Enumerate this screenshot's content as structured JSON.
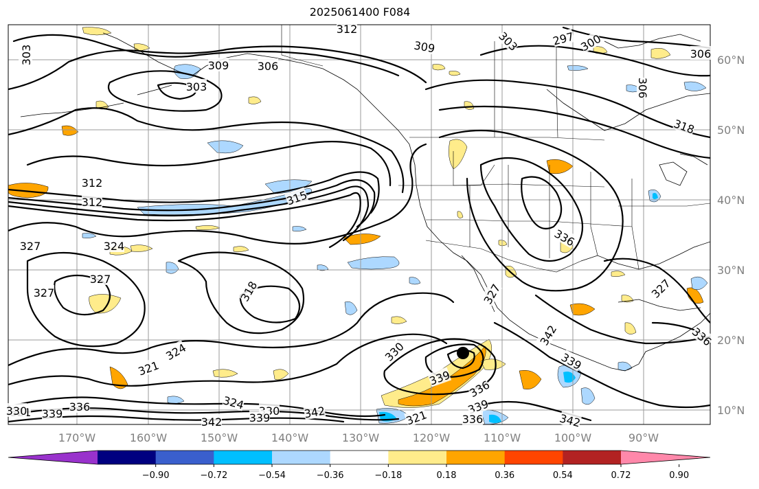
{
  "title": "2025061400 F084",
  "lon_labels": [
    "170°W",
    "160°W",
    "150°W",
    "140°W",
    "130°W",
    "120°W",
    "110°W",
    "100°W",
    "90°W"
  ],
  "lat_labels": [
    "60°N",
    "50°N",
    "40°N",
    "30°N",
    "20°N",
    "10°N"
  ],
  "colorbar": {
    "colors": [
      "#9932cc",
      "#000080",
      "#3a5fcd",
      "#00bfff",
      "#add8ff",
      "#ffffff",
      "#ffec8b",
      "#ffa500",
      "#ff4500",
      "#b22222",
      "#ff88aa"
    ],
    "ticks": [
      "−0.90",
      "−0.72",
      "−0.54",
      "−0.36",
      "−0.18",
      "0.18",
      "0.36",
      "0.54",
      "0.72",
      "0.90"
    ]
  },
  "contour_labels": [
    "303",
    "309",
    "306",
    "303",
    "312",
    "309",
    "303",
    "297",
    "300",
    "306",
    "306",
    "318",
    "312",
    "312",
    "315",
    "327",
    "324",
    "327",
    "327",
    "318",
    "336",
    "321",
    "324",
    "330",
    "339",
    "336",
    "342",
    "339",
    "336",
    "327",
    "321",
    "336",
    "339",
    "324",
    "330",
    "339",
    "342",
    "342",
    "342",
    "339",
    "336",
    "330",
    "321",
    "327"
  ],
  "storm_marker": "hurricane-position"
}
